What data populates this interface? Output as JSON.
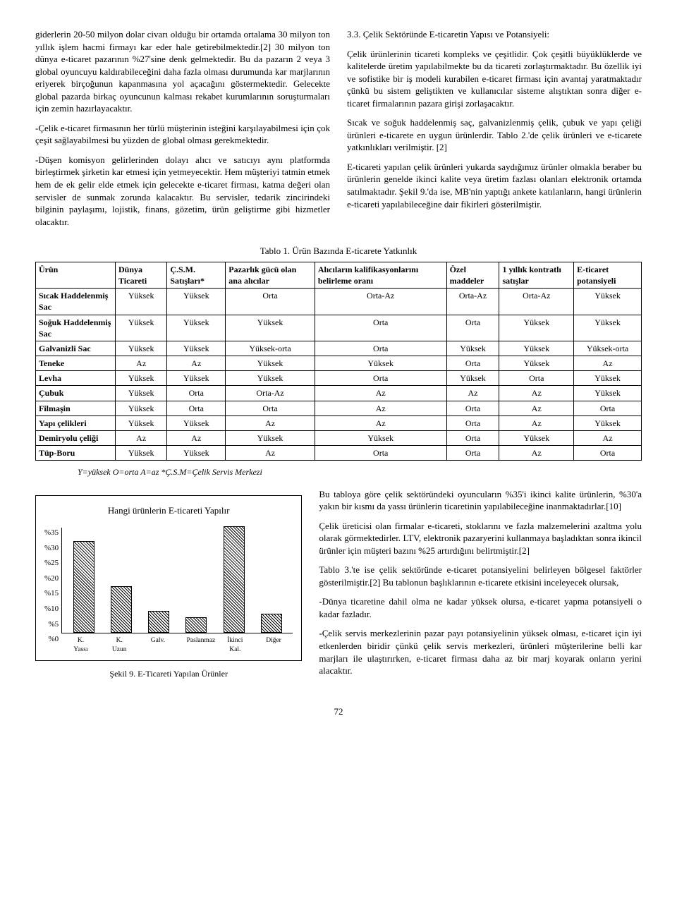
{
  "leftCol": {
    "p1": "giderlerin 20-50 milyon dolar civarı olduğu bir ortamda ortalama 30 milyon ton yıllık işlem hacmi firmayı kar eder hale getirebilmektedir.[2] 30 milyon ton dünya e-ticaret pazarının %27'sine denk gelmektedir. Bu da pazarın 2 veya 3 global oyuncuyu kaldırabileceğini daha fazla olması durumunda kar marjlarının eriyerek birçoğunun kapanmasına yol açacağını göstermektedir. Gelecekte global pazarda birkaç oyuncunun kalması rekabet kurumlarının soruşturmaları için zemin hazırlayacaktır.",
    "p2": "-Çelik e-ticaret firmasının her türlü müşterinin isteğini karşılayabilmesi için çok çeşit sağlayabilmesi bu yüzden de global olması gerekmektedir.",
    "p3": "-Düşen komisyon gelirlerinden dolayı alıcı ve satıcıyı aynı platformda birleştirmek şirketin kar etmesi için yetmeyecektir. Hem müşteriyi tatmin etmek hem de ek gelir elde etmek için gelecekte e-ticaret firması, katma değeri olan servisler de sunmak zorunda kalacaktır. Bu servisler, tedarik zincirindeki bilginin paylaşımı, lojistik, finans, gözetim, ürün geliştirme gibi hizmetler olacaktır."
  },
  "rightCol": {
    "title": "3.3. Çelik Sektöründe E-ticaretin Yapısı ve Potansiyeli:",
    "p1": "Çelik ürünlerinin ticareti kompleks ve çeşitlidir. Çok çeşitli büyüklüklerde ve kalitelerde üretim yapılabilmekte bu da ticareti zorlaştırmaktadır. Bu özellik iyi ve sofistike bir iş modeli kurabilen e-ticaret firması için avantaj yaratmaktadır çünkü bu sistem geliştikten ve kullanıcılar sisteme alıştıktan sonra diğer e-ticaret firmalarının pazara girişi zorlaşacaktır.",
    "p2": "Sıcak ve soğuk haddelenmiş saç, galvanizlenmiş çelik, çubuk ve yapı çeliği ürünleri e-ticarete en uygun ürünlerdir. Tablo 2.'de çelik ürünleri ve e-ticarete yatkınlıkları verilmiştir. [2]",
    "p3": "E-ticareti yapılan çelik ürünleri yukarda saydığımız ürünler olmakla beraber bu ürünlerin genelde ikinci kalite veya üretim fazlası olanları elektronik ortamda satılmaktadır. Şekil 9.'da ise, MB'nin yaptığı ankete katılanların, hangi ürünlerin e-ticareti yapılabileceğine dair fikirleri gösterilmiştir."
  },
  "tableCaption": "Tablo 1. Ürün Bazında E-ticarete Yatkınlık",
  "table": {
    "headers": [
      "Ürün",
      "Dünya Ticareti",
      "Ç.S.M. Satışları*",
      "Pazarlık gücü olan ana alıcılar",
      "Alıcıların kalifikasyonlarını belirleme oranı",
      "Özel maddeler",
      "1 yıllık kontratlı satışlar",
      "E-ticaret potansiyeli"
    ],
    "rows": [
      [
        "Sıcak Haddelenmiş Sac",
        "Yüksek",
        "Yüksek",
        "Orta",
        "Orta-Az",
        "Orta-Az",
        "Orta-Az",
        "Yüksek"
      ],
      [
        "Soğuk Haddelenmiş Sac",
        "Yüksek",
        "Yüksek",
        "Yüksek",
        "Orta",
        "Orta",
        "Yüksek",
        "Yüksek"
      ],
      [
        "Galvanizli Sac",
        "Yüksek",
        "Yüksek",
        "Yüksek-orta",
        "Orta",
        "Yüksek",
        "Yüksek",
        "Yüksek-orta"
      ],
      [
        "Teneke",
        "Az",
        "Az",
        "Yüksek",
        "Yüksek",
        "Orta",
        "Yüksek",
        "Az"
      ],
      [
        "Levha",
        "Yüksek",
        "Yüksek",
        "Yüksek",
        "Orta",
        "Yüksek",
        "Orta",
        "Yüksek"
      ],
      [
        "Çubuk",
        "Yüksek",
        "Orta",
        "Orta-Az",
        "Az",
        "Az",
        "Az",
        "Yüksek"
      ],
      [
        "Filmaşin",
        "Yüksek",
        "Orta",
        "Orta",
        "Az",
        "Orta",
        "Az",
        "Orta"
      ],
      [
        "Yapı çelikleri",
        "Yüksek",
        "Yüksek",
        "Az",
        "Az",
        "Orta",
        "Az",
        "Yüksek"
      ],
      [
        "Demiryolu çeliği",
        "Az",
        "Az",
        "Yüksek",
        "Yüksek",
        "Orta",
        "Yüksek",
        "Az"
      ],
      [
        "Tüp-Boru",
        "Yüksek",
        "Yüksek",
        "Az",
        "Orta",
        "Orta",
        "Az",
        "Orta"
      ]
    ]
  },
  "tableLegend": "Y=yüksek    O=orta    A=az                *Ç.S.M=Çelik Servis Merkezi",
  "chart": {
    "title": "Hangi ürünlerin E-ticareti Yapılır",
    "yTicks": [
      "%35",
      "%30",
      "%25",
      "%20",
      "%15",
      "%10",
      "%5",
      "%0"
    ],
    "bars": [
      {
        "label": "K. Yassı",
        "valuePct": 30,
        "heightPct": 86
      },
      {
        "label": "K. Uzun",
        "valuePct": 15,
        "heightPct": 43
      },
      {
        "label": "Galv.",
        "valuePct": 7,
        "heightPct": 20
      },
      {
        "label": "Paslanmaz",
        "valuePct": 5,
        "heightPct": 14
      },
      {
        "label": "İkinci Kal.",
        "valuePct": 35,
        "heightPct": 100
      },
      {
        "label": "Diğer",
        "valuePct": 6,
        "heightPct": 17
      }
    ],
    "caption": "Şekil 9. E-Ticareti Yapılan Ürünler"
  },
  "lowerRight": {
    "p1": "Bu tabloya göre çelik sektöründeki oyuncuların %35'i ikinci kalite ürünlerin, %30'a yakın bir kısmı da yassı ürünlerin ticaretinin yapılabileceğine inanmaktadırlar.[10]",
    "p2": "Çelik üreticisi olan firmalar e-ticareti, stoklarını ve fazla malzemelerini azaltma yolu olarak görmektedirler. LTV, elektronik pazaryerini kullanmaya başladıktan sonra ikincil ürünler için müşteri bazını %25 artırdığını belirtmiştir.[2]",
    "p3": "Tablo 3.'te ise çelik sektöründe e-ticaret potansiyelini belirleyen bölgesel faktörler gösterilmiştir.[2] Bu tablonun başlıklarının e-ticarete etkisini inceleyecek olursak,",
    "p4": "-Dünya ticaretine dahil olma ne kadar yüksek olursa, e-ticaret yapma potansiyeli o kadar fazladır.",
    "p5": "-Çelik servis merkezlerinin pazar payı potansiyelinin yüksek olması, e-ticaret için iyi etkenlerden biridir çünkü çelik servis merkezleri, ürünleri müşterilerine belli kar marjları ile ulaştırırken, e-ticaret firması daha az bir marj koyarak onların yerini alacaktır."
  },
  "pageNumber": "72"
}
